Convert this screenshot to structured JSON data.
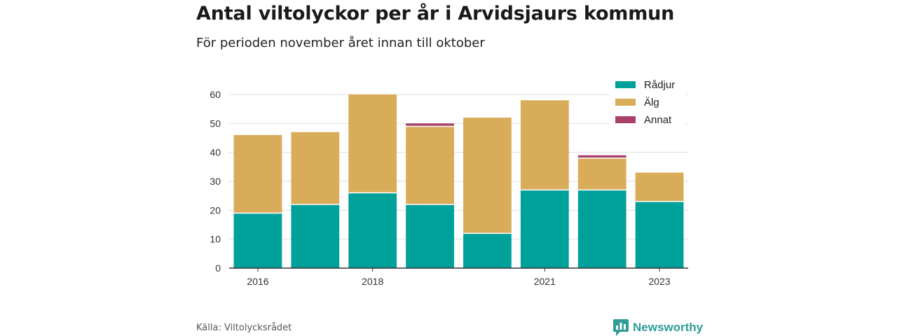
{
  "header": {
    "title": "Antal viltolyckor per år i Arvidsjaurs kommun",
    "subtitle": "För perioden november året innan till oktober"
  },
  "footer": {
    "source": "Källa: Viltolycksrådet",
    "brand": "Newsworthy",
    "brand_icon": "newsworthy-logo-icon"
  },
  "colors": {
    "Rådjur": "#00a19a",
    "Älg": "#d9ac5a",
    "Annat": "#a8416a",
    "grid": "#dddddd",
    "axis": "#333333"
  },
  "chart_data": {
    "type": "bar",
    "stacked": true,
    "categories": [
      "2016",
      "2017",
      "2018",
      "2019",
      "2020",
      "2021",
      "2022",
      "2023"
    ],
    "x_tick_labels": [
      "2016",
      "",
      "2018",
      "",
      "",
      "2021",
      "",
      "2023"
    ],
    "series": [
      {
        "name": "Rådjur",
        "values": [
          19,
          22,
          26,
          22,
          12,
          27,
          27,
          23
        ]
      },
      {
        "name": "Älg",
        "values": [
          27,
          25,
          34,
          27,
          40,
          31,
          11,
          10
        ]
      },
      {
        "name": "Annat",
        "values": [
          0,
          0,
          0,
          1,
          0,
          0,
          1,
          0
        ]
      }
    ],
    "ylim": [
      0,
      60
    ],
    "yticks": [
      0,
      10,
      20,
      30,
      40,
      50,
      60
    ],
    "grid": true,
    "legend_position": "top-right",
    "xlabel": "",
    "ylabel": ""
  }
}
